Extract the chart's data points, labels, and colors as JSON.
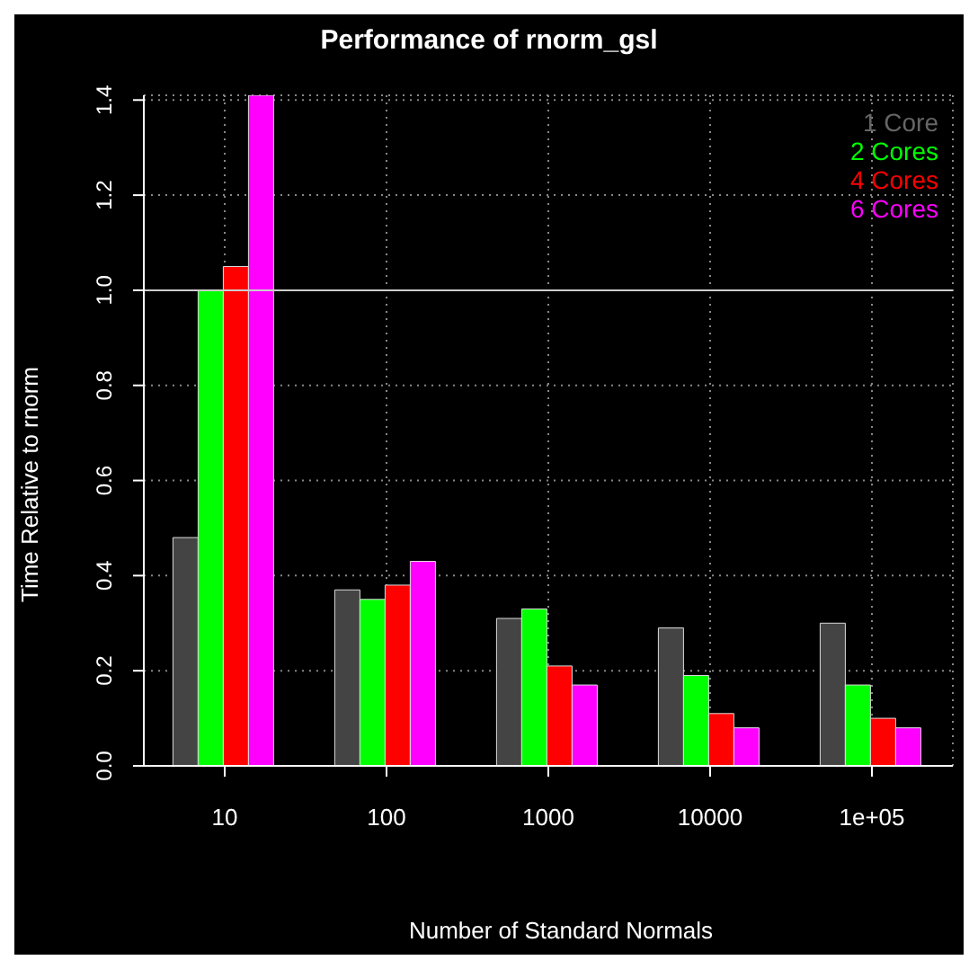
{
  "chart_data": {
    "type": "bar",
    "title": "Performance of rnorm_gsl",
    "xlabel": "Number of Standard Normals",
    "ylabel": "Time Relative to rnorm",
    "categories": [
      "10",
      "100",
      "1000",
      "10000",
      "1e+05"
    ],
    "series": [
      {
        "name": "1 Core",
        "color": "#444444",
        "values": [
          0.48,
          0.37,
          0.31,
          0.29,
          0.3
        ]
      },
      {
        "name": "2 Cores",
        "color": "#00ff00",
        "values": [
          1.0,
          0.35,
          0.33,
          0.19,
          0.17
        ]
      },
      {
        "name": "4 Cores",
        "color": "#ff0000",
        "values": [
          1.05,
          0.38,
          0.21,
          0.11,
          0.1
        ]
      },
      {
        "name": "6 Cores",
        "color": "#ff00ff",
        "values": [
          1.41,
          0.43,
          0.17,
          0.08,
          0.08
        ]
      }
    ],
    "ylim": [
      0,
      1.41
    ],
    "yticks": [
      {
        "value": 0,
        "label": "0.0"
      },
      0.2,
      0.4,
      0.6,
      0.8,
      {
        "value": 1,
        "label": "1.0"
      },
      1.2,
      1.4
    ],
    "ref_lines": [
      {
        "axis": "y",
        "value": 1,
        "color": "#cccccc"
      }
    ],
    "grid": true,
    "legend": "top right"
  }
}
